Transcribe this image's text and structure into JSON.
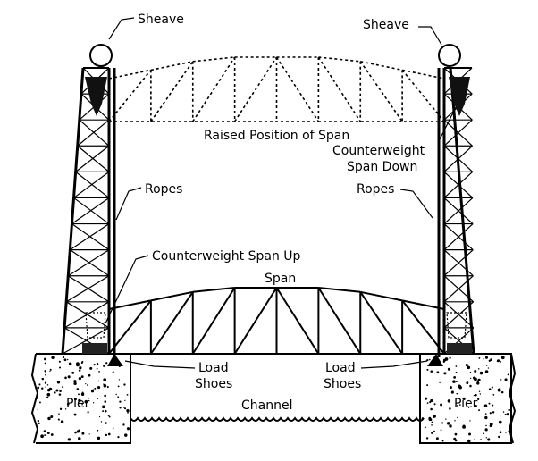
{
  "labels": {
    "sheave_left": "Sheave",
    "sheave_right": "Sheave",
    "raised_position": "Raised Position of Span",
    "counterweight_span_down_1": "Counterweight",
    "counterweight_span_down_2": "Span Down",
    "ropes_left": "Ropes",
    "ropes_right": "Ropes",
    "counterweight_span_up": "Counterweight Span Up",
    "span": "Span",
    "load_shoes_left_1": "Load",
    "load_shoes_left_2": "Shoes",
    "load_shoes_right_1": "Load",
    "load_shoes_right_2": "Shoes",
    "pier_left": "Pier",
    "pier_right": "Pier",
    "channel": "Channel"
  }
}
